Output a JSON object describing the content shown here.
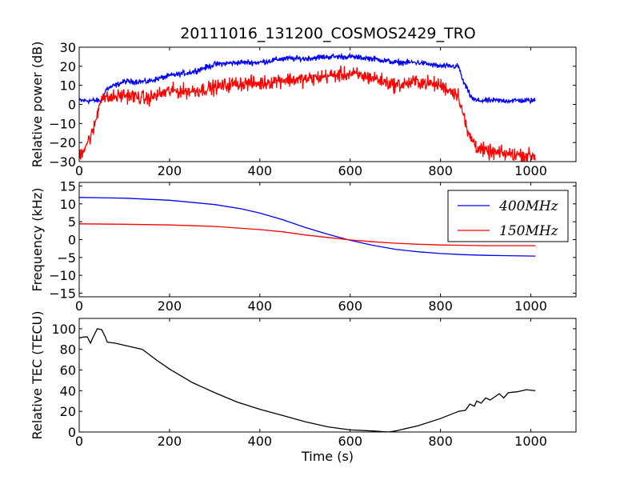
{
  "title": "20111016_131200_COSMOS2429_TRO",
  "chart_data": [
    {
      "id": "power",
      "type": "line",
      "xlabel": "",
      "ylabel": "Relative power (dB)",
      "xlim": [
        0,
        1100
      ],
      "ylim": [
        -30,
        30
      ],
      "xticks": [
        "0",
        "200",
        "400",
        "600",
        "800",
        "1000"
      ],
      "yticks": [
        "−30",
        "−20",
        "−10",
        "0",
        "10",
        "20",
        "30"
      ],
      "series": [
        {
          "color": "#0000ff",
          "x": [
            0,
            50,
            60,
            100,
            150,
            200,
            250,
            300,
            350,
            400,
            450,
            500,
            550,
            600,
            650,
            700,
            750,
            800,
            840,
            850,
            870,
            880,
            900,
            950,
            1010
          ],
          "y": [
            2,
            2,
            8,
            12,
            12,
            15,
            17,
            21,
            22,
            22,
            24,
            24,
            25,
            25,
            24,
            22,
            22,
            20,
            20,
            12,
            3,
            2,
            2,
            2,
            2
          ]
        },
        {
          "color": "#ff0000",
          "x": [
            0,
            30,
            50,
            60,
            100,
            150,
            200,
            250,
            300,
            350,
            400,
            450,
            500,
            550,
            600,
            650,
            700,
            750,
            800,
            840,
            860,
            880,
            900,
            950,
            1010
          ],
          "y": [
            -27,
            -15,
            5,
            3,
            5,
            3,
            7,
            7,
            9,
            11,
            11,
            13,
            13,
            15,
            16,
            14,
            10,
            12,
            10,
            5,
            -15,
            -22,
            -25,
            -26,
            -27
          ]
        }
      ]
    },
    {
      "id": "frequency",
      "type": "line",
      "xlabel": "",
      "ylabel": "Frequency (kHz)",
      "xlim": [
        0,
        1100
      ],
      "ylim": [
        -16,
        16
      ],
      "xticks": [
        "0",
        "200",
        "400",
        "600",
        "800",
        "1000"
      ],
      "yticks": [
        "−15",
        "−10",
        "−5",
        "0",
        "5",
        "10",
        "15"
      ],
      "legend": "top-right",
      "series": [
        {
          "name": "400MHz",
          "color": "#0000ff",
          "x": [
            0,
            100,
            200,
            300,
            360,
            400,
            450,
            500,
            550,
            600,
            650,
            700,
            750,
            800,
            850,
            900,
            950,
            1010
          ],
          "y": [
            11.8,
            11.6,
            11.0,
            9.8,
            8.6,
            7.4,
            5.6,
            3.4,
            1.5,
            -0.2,
            -1.6,
            -2.7,
            -3.4,
            -3.9,
            -4.2,
            -4.4,
            -4.5,
            -4.6
          ]
        },
        {
          "name": "150MHz",
          "color": "#ff0000",
          "x": [
            0,
            100,
            200,
            300,
            400,
            450,
            500,
            550,
            600,
            650,
            700,
            750,
            800,
            850,
            900,
            1010
          ],
          "y": [
            4.4,
            4.3,
            4.1,
            3.7,
            2.8,
            2.2,
            1.3,
            0.6,
            -0.1,
            -0.6,
            -1.0,
            -1.3,
            -1.5,
            -1.6,
            -1.7,
            -1.7
          ]
        }
      ]
    },
    {
      "id": "tec",
      "type": "line",
      "xlabel": "Time (s)",
      "ylabel": "Relative TEC (TECU)",
      "xlim": [
        0,
        1100
      ],
      "ylim": [
        0,
        110
      ],
      "xticks": [
        "0",
        "200",
        "400",
        "600",
        "800",
        "1000"
      ],
      "yticks": [
        "0",
        "20",
        "40",
        "60",
        "80",
        "100"
      ],
      "series": [
        {
          "color": "#000000",
          "x": [
            0,
            10,
            18,
            25,
            30,
            40,
            50,
            58,
            62,
            80,
            100,
            140,
            170,
            200,
            250,
            300,
            350,
            400,
            450,
            500,
            550,
            600,
            650,
            685,
            700,
            750,
            800,
            840,
            855,
            865,
            875,
            880,
            890,
            900,
            910,
            920,
            930,
            940,
            950,
            970,
            990,
            1010
          ],
          "y": [
            91,
            92,
            92,
            86,
            91,
            100,
            99,
            92,
            87,
            86,
            84,
            80,
            70,
            61,
            48,
            38,
            29,
            22,
            16,
            10,
            5,
            2,
            1,
            0,
            1,
            6,
            13,
            20,
            21,
            27,
            25,
            30,
            28,
            33,
            31,
            34,
            37,
            33,
            38,
            39,
            41,
            40
          ]
        }
      ]
    }
  ]
}
